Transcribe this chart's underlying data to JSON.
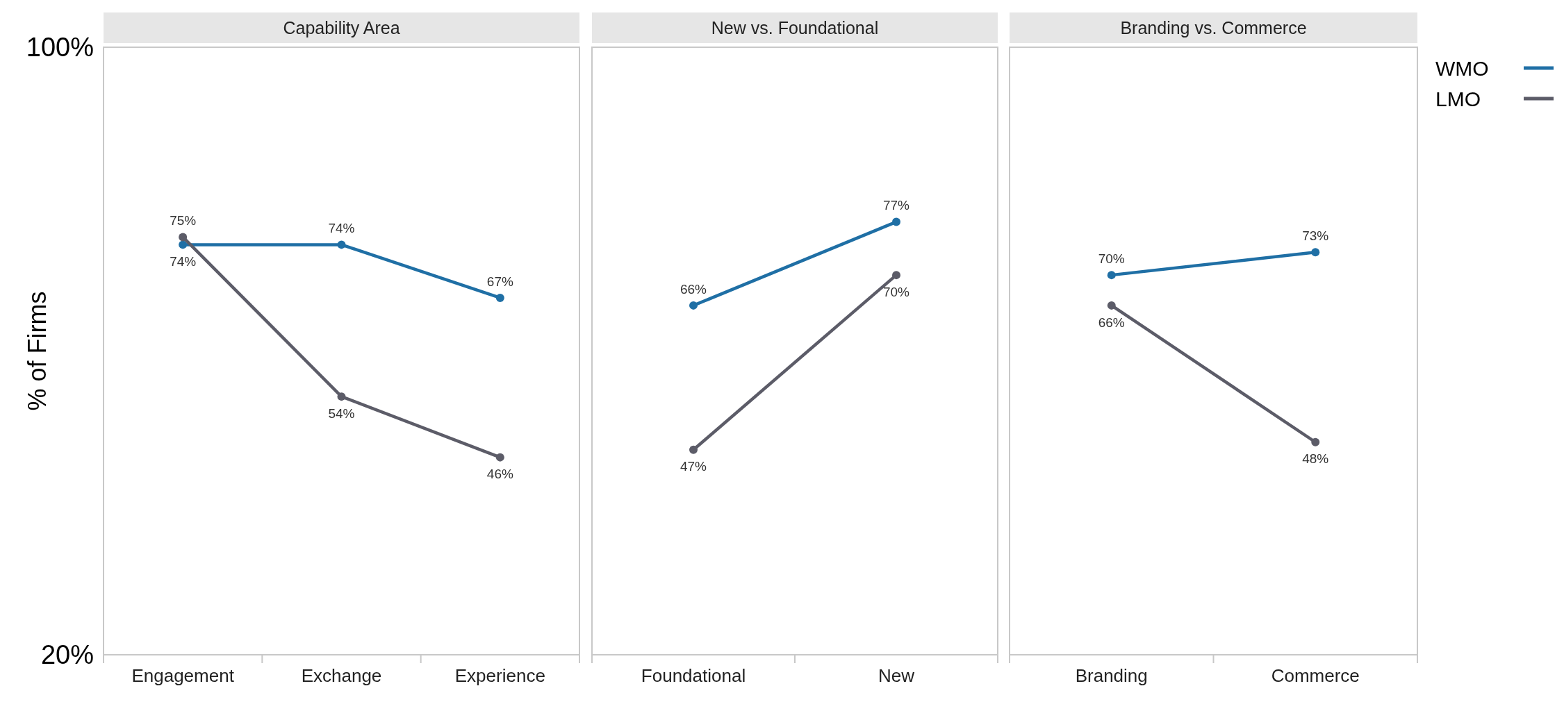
{
  "chart_data": [
    {
      "type": "line",
      "title": "Capability Area",
      "ylabel": "% of Firms",
      "categories": [
        "Engagement",
        "Exchange",
        "Experience"
      ],
      "ylim": [
        20,
        100
      ],
      "yticks": [
        {
          "value": 100,
          "label": "100%"
        },
        {
          "value": 20,
          "label": "20%"
        }
      ],
      "tick_labels": "xy",
      "marker": "circle",
      "grid": false,
      "legend": false,
      "series": [
        {
          "color": "#1f6fa5",
          "values": [
            74,
            74,
            67
          ],
          "value_labels": [
            "74%",
            "74%",
            "67%"
          ]
        },
        {
          "color": "#5c5c68",
          "values": [
            75,
            54,
            46
          ],
          "value_labels": [
            "75%",
            "54%",
            "46%"
          ]
        }
      ]
    },
    {
      "type": "line",
      "title": "New vs. Foundational",
      "categories": [
        "Foundational",
        "New"
      ],
      "ylim": [
        20,
        100
      ],
      "tick_labels": "x",
      "marker": "circle",
      "grid": false,
      "legend": false,
      "series": [
        {
          "color": "#1f6fa5",
          "values": [
            66,
            77
          ],
          "value_labels": [
            "66%",
            "77%"
          ]
        },
        {
          "color": "#5c5c68",
          "values": [
            47,
            70
          ],
          "value_labels": [
            "47%",
            "70%"
          ]
        }
      ]
    },
    {
      "type": "line",
      "title": "Branding vs. Commerce",
      "categories": [
        "Branding",
        "Commerce"
      ],
      "ylim": [
        20,
        100
      ],
      "tick_labels": "x",
      "marker": "circle",
      "grid": false,
      "legend": "right",
      "series": [
        {
          "name": "WMO",
          "color": "#1f6fa5",
          "values": [
            70,
            73
          ],
          "value_labels": [
            "70%",
            "73%"
          ]
        },
        {
          "name": "LMO",
          "color": "#5c5c68",
          "values": [
            66,
            48
          ],
          "value_labels": [
            "66%",
            "48%"
          ]
        }
      ]
    }
  ]
}
